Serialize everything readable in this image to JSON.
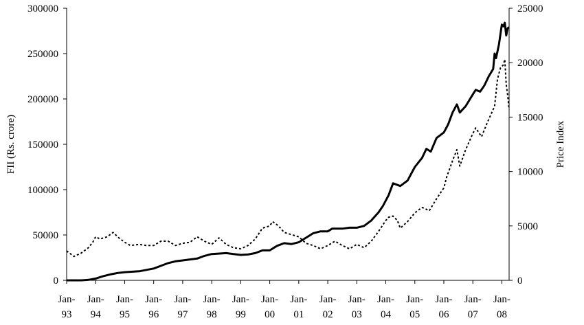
{
  "chart_data": {
    "type": "line",
    "title": "",
    "xlabel": "",
    "ylabel_left": "FII (Rs. crore)",
    "ylabel_right": "Price Index",
    "ylim_left": [
      0,
      300000
    ],
    "ylim_right": [
      0,
      25000
    ],
    "yticks_left": [
      "0",
      "50000",
      "100000",
      "150000",
      "200000",
      "250000",
      "300000"
    ],
    "yticks_right": [
      "0",
      "5000",
      "10000",
      "15000",
      "20000",
      "25000"
    ],
    "x_tick_labels": [
      {
        "top": "Jan-",
        "bottom": "93"
      },
      {
        "top": "Jan-",
        "bottom": "94"
      },
      {
        "top": "Jan-",
        "bottom": "95"
      },
      {
        "top": "Jan-",
        "bottom": "96"
      },
      {
        "top": "Jan-",
        "bottom": "97"
      },
      {
        "top": "Jan-",
        "bottom": "98"
      },
      {
        "top": "Jan-",
        "bottom": "99"
      },
      {
        "top": "Jan-",
        "bottom": "00"
      },
      {
        "top": "Jan-",
        "bottom": "01"
      },
      {
        "top": "Jan-",
        "bottom": "02"
      },
      {
        "top": "Jan-",
        "bottom": "03"
      },
      {
        "top": "Jan-",
        "bottom": "04"
      },
      {
        "top": "Jan-",
        "bottom": "05"
      },
      {
        "top": "Jan-",
        "bottom": "06"
      },
      {
        "top": "Jan-",
        "bottom": "07"
      },
      {
        "top": "Jan-",
        "bottom": "08"
      }
    ],
    "x_range": [
      1993.0,
      2008.25
    ],
    "legend": "none",
    "grid": false,
    "series": [
      {
        "style": "solid",
        "axis": "left",
        "color": "#000000",
        "points": [
          [
            1993.0,
            0
          ],
          [
            1993.5,
            0
          ],
          [
            1993.75,
            500
          ],
          [
            1994.0,
            2000
          ],
          [
            1994.25,
            4500
          ],
          [
            1994.5,
            6500
          ],
          [
            1994.75,
            8000
          ],
          [
            1995.0,
            9000
          ],
          [
            1995.5,
            10000
          ],
          [
            1996.0,
            13000
          ],
          [
            1996.25,
            16000
          ],
          [
            1996.5,
            19000
          ],
          [
            1996.75,
            21000
          ],
          [
            1997.0,
            22000
          ],
          [
            1997.5,
            24000
          ],
          [
            1997.75,
            27000
          ],
          [
            1998.0,
            29000
          ],
          [
            1998.5,
            30000
          ],
          [
            1998.75,
            29000
          ],
          [
            1999.0,
            28000
          ],
          [
            1999.25,
            28500
          ],
          [
            1999.5,
            30000
          ],
          [
            1999.75,
            33000
          ],
          [
            2000.0,
            33000
          ],
          [
            2000.25,
            38000
          ],
          [
            2000.5,
            41000
          ],
          [
            2000.75,
            40000
          ],
          [
            2001.0,
            42000
          ],
          [
            2001.25,
            47000
          ],
          [
            2001.5,
            52000
          ],
          [
            2001.75,
            54000
          ],
          [
            2002.0,
            54000
          ],
          [
            2002.15,
            57000
          ],
          [
            2002.5,
            57000
          ],
          [
            2002.75,
            58000
          ],
          [
            2003.0,
            58000
          ],
          [
            2003.25,
            60000
          ],
          [
            2003.5,
            66000
          ],
          [
            2003.75,
            75000
          ],
          [
            2003.9,
            82000
          ],
          [
            2004.1,
            94000
          ],
          [
            2004.25,
            107000
          ],
          [
            2004.5,
            104000
          ],
          [
            2004.75,
            110000
          ],
          [
            2005.0,
            125000
          ],
          [
            2005.25,
            135000
          ],
          [
            2005.4,
            145000
          ],
          [
            2005.55,
            142000
          ],
          [
            2005.75,
            157000
          ],
          [
            2006.0,
            163000
          ],
          [
            2006.15,
            172000
          ],
          [
            2006.3,
            185000
          ],
          [
            2006.45,
            194000
          ],
          [
            2006.55,
            185000
          ],
          [
            2006.75,
            192000
          ],
          [
            2007.0,
            205000
          ],
          [
            2007.1,
            210000
          ],
          [
            2007.25,
            208000
          ],
          [
            2007.4,
            215000
          ],
          [
            2007.55,
            225000
          ],
          [
            2007.7,
            233000
          ],
          [
            2007.75,
            250000
          ],
          [
            2007.8,
            245000
          ],
          [
            2007.9,
            260000
          ],
          [
            2008.0,
            282000
          ],
          [
            2008.05,
            280000
          ],
          [
            2008.1,
            284000
          ],
          [
            2008.15,
            270000
          ],
          [
            2008.2,
            278000
          ],
          [
            2008.25,
            279000
          ]
        ]
      },
      {
        "style": "dotted",
        "axis": "right",
        "color": "#000000",
        "points": [
          [
            1993.0,
            2700
          ],
          [
            1993.1,
            2500
          ],
          [
            1993.25,
            2200
          ],
          [
            1993.5,
            2500
          ],
          [
            1993.75,
            3000
          ],
          [
            1993.9,
            3500
          ],
          [
            1994.0,
            4000
          ],
          [
            1994.15,
            3800
          ],
          [
            1994.4,
            4000
          ],
          [
            1994.6,
            4400
          ],
          [
            1994.8,
            3900
          ],
          [
            1995.0,
            3500
          ],
          [
            1995.2,
            3200
          ],
          [
            1995.5,
            3300
          ],
          [
            1995.75,
            3200
          ],
          [
            1996.0,
            3200
          ],
          [
            1996.25,
            3600
          ],
          [
            1996.5,
            3600
          ],
          [
            1996.75,
            3200
          ],
          [
            1997.0,
            3400
          ],
          [
            1997.25,
            3500
          ],
          [
            1997.5,
            4000
          ],
          [
            1997.75,
            3600
          ],
          [
            1998.0,
            3300
          ],
          [
            1998.25,
            3900
          ],
          [
            1998.5,
            3300
          ],
          [
            1998.75,
            3000
          ],
          [
            1999.0,
            2900
          ],
          [
            1999.25,
            3200
          ],
          [
            1999.5,
            3800
          ],
          [
            1999.75,
            4800
          ],
          [
            2000.0,
            5000
          ],
          [
            2000.1,
            5400
          ],
          [
            2000.3,
            5000
          ],
          [
            2000.5,
            4400
          ],
          [
            2000.75,
            4200
          ],
          [
            2001.0,
            4000
          ],
          [
            2001.25,
            3400
          ],
          [
            2001.5,
            3200
          ],
          [
            2001.75,
            2900
          ],
          [
            2002.0,
            3200
          ],
          [
            2002.25,
            3600
          ],
          [
            2002.5,
            3200
          ],
          [
            2002.75,
            2900
          ],
          [
            2003.0,
            3300
          ],
          [
            2003.25,
            3000
          ],
          [
            2003.5,
            3600
          ],
          [
            2003.75,
            4500
          ],
          [
            2004.0,
            5500
          ],
          [
            2004.1,
            5800
          ],
          [
            2004.25,
            5900
          ],
          [
            2004.4,
            5500
          ],
          [
            2004.5,
            4800
          ],
          [
            2004.75,
            5400
          ],
          [
            2005.0,
            6200
          ],
          [
            2005.25,
            6700
          ],
          [
            2005.5,
            6400
          ],
          [
            2005.75,
            7500
          ],
          [
            2006.0,
            8500
          ],
          [
            2006.1,
            9500
          ],
          [
            2006.3,
            11000
          ],
          [
            2006.45,
            12000
          ],
          [
            2006.55,
            10500
          ],
          [
            2006.75,
            12000
          ],
          [
            2007.0,
            13500
          ],
          [
            2007.1,
            14000
          ],
          [
            2007.3,
            13200
          ],
          [
            2007.5,
            14500
          ],
          [
            2007.75,
            16000
          ],
          [
            2007.85,
            18500
          ],
          [
            2007.95,
            19500
          ],
          [
            2008.05,
            19800
          ],
          [
            2008.1,
            20300
          ],
          [
            2008.15,
            18000
          ],
          [
            2008.2,
            17000
          ],
          [
            2008.25,
            15700
          ]
        ]
      }
    ]
  }
}
